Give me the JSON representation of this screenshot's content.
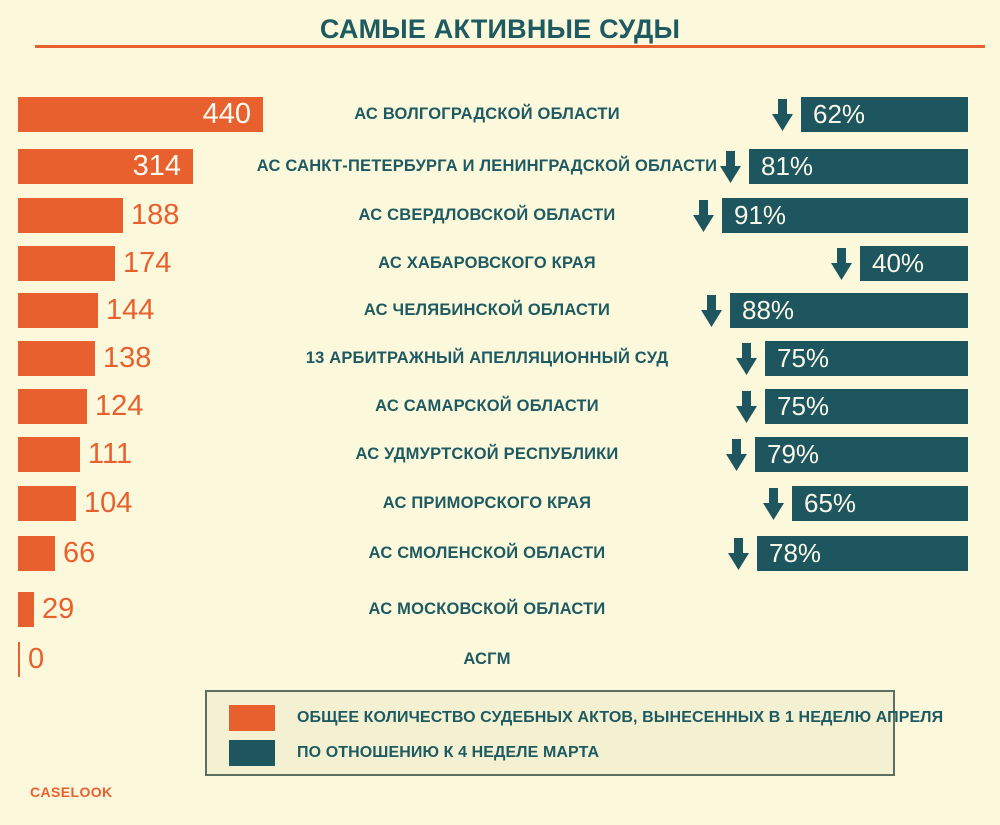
{
  "title": "САМЫЕ АКТИВНЫЕ СУДЫ",
  "brand": "CASELOOK",
  "colors": {
    "background": "#FBF8DC",
    "orange": "#E8602E",
    "teal": "#1D565E",
    "text_teal": "#1E5A61",
    "legend_background": "#F4F1D3",
    "legend_border": "#5C6F63"
  },
  "legend": {
    "items": [
      {
        "swatch": "orange",
        "label": "ОБЩЕЕ КОЛИЧЕСТВО СУДЕБНЫХ АКТОВ, ВЫНЕСЕННЫХ В 1 НЕДЕЛЮ АПРЕЛЯ"
      },
      {
        "swatch": "teal",
        "label": "ПО ОТНОШЕНИЮ К 4 НЕДЕЛЕ МАРТА"
      }
    ]
  },
  "rows": [
    {
      "court": "АС ВОЛГОГРАДСКОЙ ОБЛАСТИ",
      "count": "440",
      "percent": "62%"
    },
    {
      "court": "АС САНКТ-ПЕТЕРБУРГА И ЛЕНИНГРАДСКОЙ ОБЛАСТИ",
      "count": "314",
      "percent": "81%"
    },
    {
      "court": "АС СВЕРДЛОВСКОЙ ОБЛАСТИ",
      "count": "188",
      "percent": "91%"
    },
    {
      "court": "АС ХАБАРОВСКОГО КРАЯ",
      "count": "174",
      "percent": "40%"
    },
    {
      "court": "АС ЧЕЛЯБИНСКОЙ ОБЛАСТИ",
      "count": "144",
      "percent": "88%"
    },
    {
      "court": "13 АРБИТРАЖНЫЙ АПЕЛЛЯЦИОННЫЙ СУД",
      "count": "138",
      "percent": "75%"
    },
    {
      "court": "АС САМАРСКОЙ ОБЛАСТИ",
      "count": "124",
      "percent": "75%"
    },
    {
      "court": "АС УДМУРТСКОЙ РЕСПУБЛИКИ",
      "count": "111",
      "percent": "79%"
    },
    {
      "court": "АС ПРИМОРСКОГО КРАЯ",
      "count": "104",
      "percent": "65%"
    },
    {
      "court": "АС СМОЛЕНСКОЙ ОБЛАСТИ",
      "count": "66",
      "percent": "78%"
    },
    {
      "court": "АС МОСКОВСКОЙ ОБЛАСТИ",
      "count": "29",
      "percent": null
    },
    {
      "court": "АСГМ",
      "count": "0",
      "percent": null
    }
  ],
  "chart_data": {
    "type": "bar",
    "title": "САМЫЕ АКТИВНЫЕ СУДЫ",
    "orientation": "horizontal",
    "categories": [
      "АС ВОЛГОГРАДСКОЙ ОБЛАСТИ",
      "АС САНКТ-ПЕТЕРБУРГА И ЛЕНИНГРАДСКОЙ ОБЛАСТИ",
      "АС СВЕРДЛОВСКОЙ ОБЛАСТИ",
      "АС ХАБАРОВСКОГО КРАЯ",
      "АС ЧЕЛЯБИНСКОЙ ОБЛАСТИ",
      "13 АРБИТРАЖНЫЙ АПЕЛЛЯЦИОННЫЙ СУД",
      "АС САМАРСКОЙ ОБЛАСТИ",
      "АС УДМУРТСКОЙ РЕСПУБЛИКИ",
      "АС ПРИМОРСКОГО КРАЯ",
      "АС СМОЛЕНСКОЙ ОБЛАСТИ",
      "АС МОСКОВСКОЙ ОБЛАСТИ",
      "АСГМ"
    ],
    "series": [
      {
        "name": "ОБЩЕЕ КОЛИЧЕСТВО СУДЕБНЫХ АКТОВ, ВЫНЕСЕННЫХ В 1 НЕДЕЛЮ АПРЕЛЯ",
        "color": "#E8602E",
        "values": [
          440,
          314,
          188,
          174,
          144,
          138,
          124,
          111,
          104,
          66,
          29,
          0
        ]
      },
      {
        "name": "ПО ОТНОШЕНИЮ К 4 НЕДЕЛЕ МАРТА",
        "color": "#1D565E",
        "unit": "%",
        "direction": "decrease",
        "values": [
          62,
          81,
          91,
          40,
          88,
          75,
          75,
          79,
          65,
          78,
          null,
          null
        ]
      }
    ],
    "legend_position": "bottom",
    "grid": false
  }
}
